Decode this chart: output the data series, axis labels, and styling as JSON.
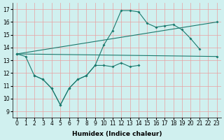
{
  "xlabel": "Humidex (Indice chaleur)",
  "xlim": [
    -0.5,
    23.5
  ],
  "ylim": [
    8.5,
    17.5
  ],
  "xticks": [
    0,
    1,
    2,
    3,
    4,
    5,
    6,
    7,
    8,
    9,
    10,
    11,
    12,
    13,
    14,
    15,
    16,
    17,
    18,
    19,
    20,
    21,
    22,
    23
  ],
  "yticks": [
    9,
    10,
    11,
    12,
    13,
    14,
    15,
    16,
    17
  ],
  "bg_color": "#d0f0ef",
  "grid_color": "#e8a0a0",
  "line_color": "#1a7a6e",
  "line1_x": [
    0,
    1,
    2,
    3,
    4,
    5,
    6,
    7,
    8,
    9,
    10,
    11,
    12,
    13,
    14,
    15,
    16,
    17,
    18,
    19,
    20,
    21
  ],
  "line1_y": [
    13.5,
    13.3,
    11.8,
    11.5,
    10.8,
    9.5,
    10.8,
    11.5,
    11.8,
    12.6,
    14.2,
    15.3,
    16.9,
    16.9,
    16.8,
    15.9,
    15.6,
    15.7,
    15.8,
    15.4,
    14.7,
    13.9
  ],
  "line2_x": [
    0,
    23
  ],
  "line2_y": [
    13.5,
    16.0
  ],
  "line3_x": [
    0,
    23
  ],
  "line3_y": [
    13.5,
    13.3
  ],
  "line4_x": [
    2,
    3,
    4,
    5,
    6,
    7,
    8,
    9,
    10,
    11,
    12,
    13,
    14
  ],
  "line4_y": [
    11.8,
    11.5,
    10.8,
    9.5,
    10.8,
    11.5,
    11.8,
    12.6,
    12.6,
    12.5,
    12.8,
    12.5,
    12.6
  ]
}
